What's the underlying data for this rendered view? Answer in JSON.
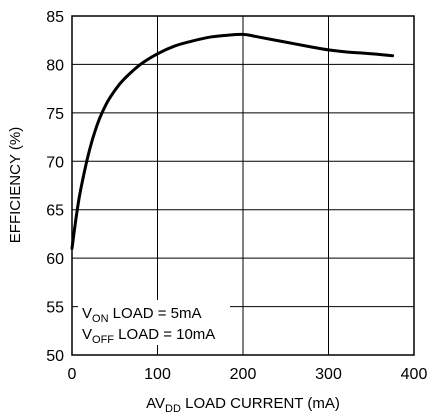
{
  "chart_data": {
    "type": "line",
    "title": "",
    "xlabel": {
      "prefix": "AV",
      "subscript": "DD",
      "suffix": " LOAD CURRENT (mA)"
    },
    "ylabel": "EFFICIENCY (%)",
    "xlim": [
      0,
      400
    ],
    "ylim": [
      50,
      85
    ],
    "xticks": [
      0,
      100,
      200,
      300,
      400
    ],
    "yticks": [
      50,
      55,
      60,
      65,
      70,
      75,
      80,
      85
    ],
    "grid": true,
    "line_color": "#000000",
    "series": [
      {
        "x": [
          0,
          5,
          10,
          20,
          30,
          40,
          50,
          60,
          80,
          100,
          120,
          140,
          160,
          180,
          200,
          220,
          250,
          280,
          300,
          320,
          350,
          375
        ],
        "y": [
          61.0,
          64.3,
          67.0,
          71.0,
          73.9,
          75.9,
          77.3,
          78.4,
          80.0,
          81.1,
          81.9,
          82.4,
          82.8,
          83.0,
          83.1,
          82.8,
          82.3,
          81.8,
          81.5,
          81.3,
          81.1,
          80.9
        ]
      }
    ],
    "annotations": [
      {
        "prefix": "V",
        "subscript": "ON",
        "suffix": " LOAD = 5mA"
      },
      {
        "prefix": "V",
        "subscript": "OFF",
        "suffix": " LOAD = 10mA"
      }
    ]
  }
}
